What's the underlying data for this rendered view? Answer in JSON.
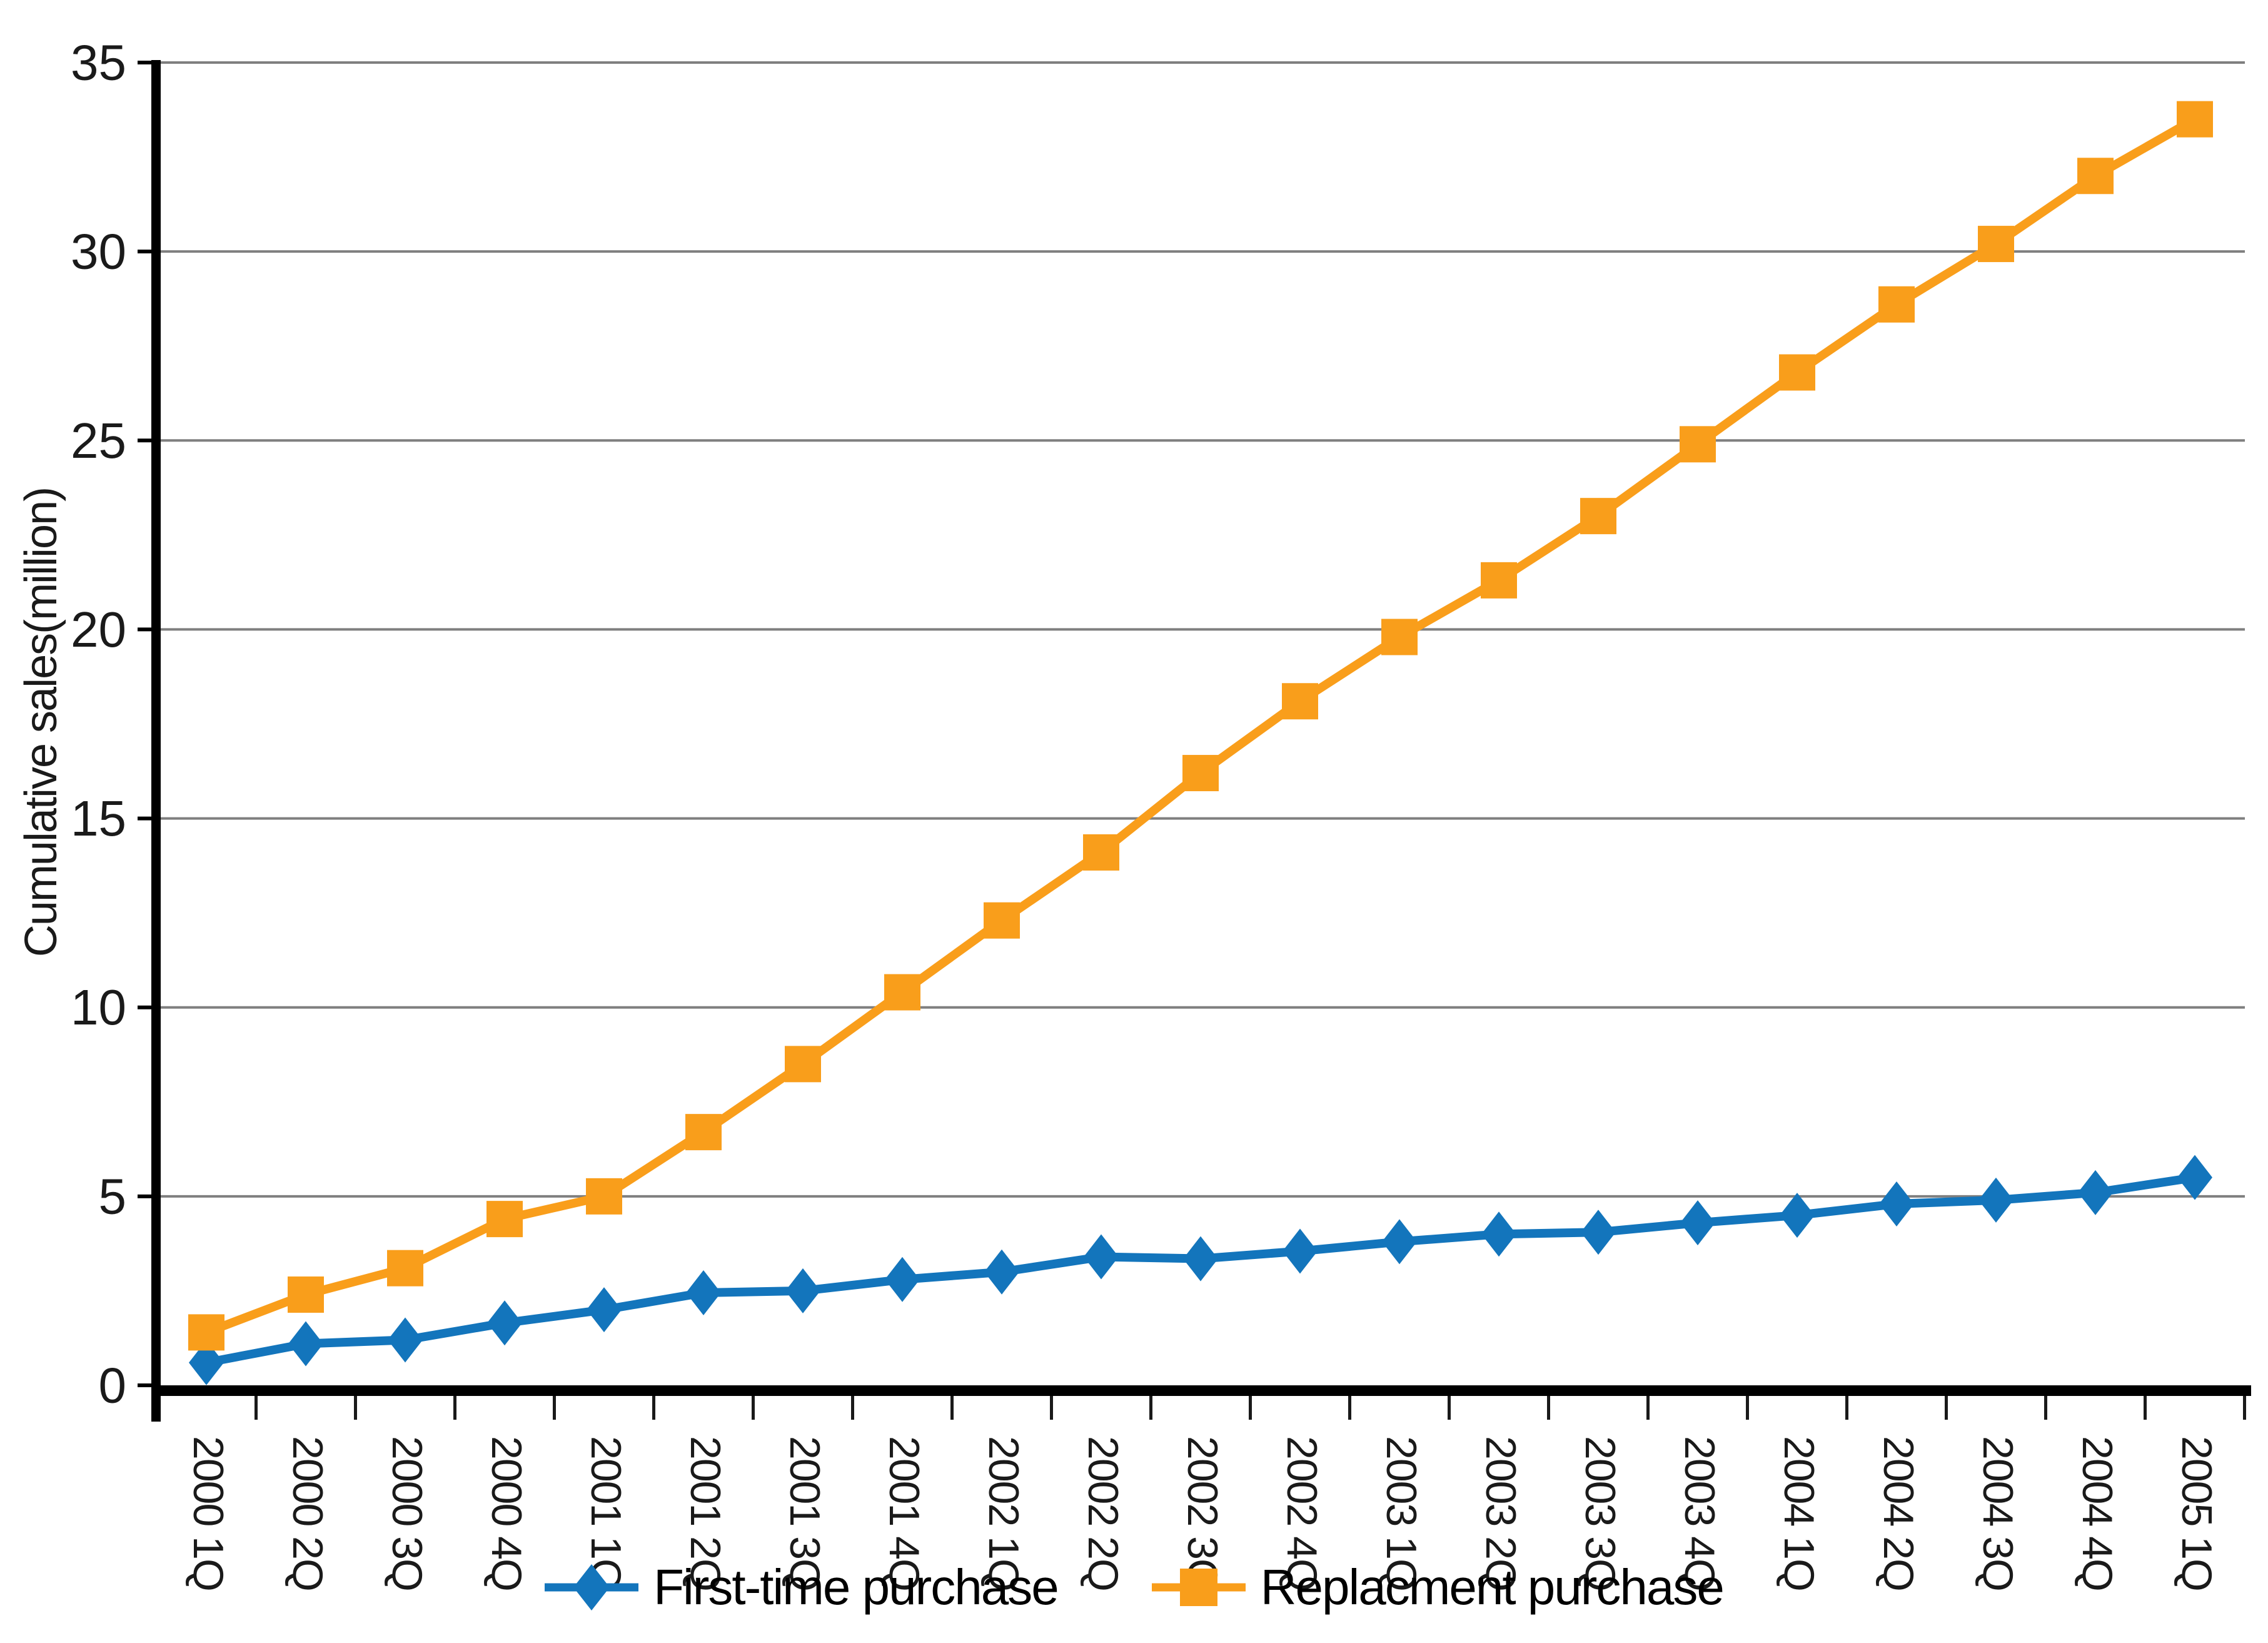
{
  "chart_data": {
    "type": "line",
    "title": "",
    "xlabel": "",
    "ylabel": "Cumulative sales(million)",
    "ylim": [
      0,
      35
    ],
    "yticks": [
      0,
      5,
      10,
      15,
      20,
      25,
      30,
      35
    ],
    "grid": true,
    "legend_position": "bottom",
    "categories": [
      "2000 1Q",
      "2000 2Q",
      "2000 3Q",
      "2000 4Q",
      "2001 1Q",
      "2001 2Q",
      "2001 3Q",
      "2001 4Q",
      "2002 1Q",
      "2002 2Q",
      "2002 3Q",
      "2002 4Q",
      "2003 1Q",
      "2003 2Q",
      "2003 3Q",
      "2003 4Q",
      "2004 1Q",
      "2004 2Q",
      "2004 3Q",
      "2004 4Q",
      "2005 1Q"
    ],
    "series": [
      {
        "name": "First-time purchase",
        "marker": "diamond",
        "color": "#1375BC",
        "values": [
          0.6,
          1.1,
          1.2,
          1.65,
          2.0,
          2.45,
          2.5,
          2.8,
          3.0,
          3.4,
          3.35,
          3.55,
          3.8,
          4.0,
          4.05,
          4.3,
          4.5,
          4.8,
          4.9,
          5.1,
          5.5
        ]
      },
      {
        "name": "Replacment purchase",
        "marker": "square",
        "color": "#F99E1B",
        "values": [
          1.4,
          2.4,
          3.1,
          4.4,
          5.0,
          6.7,
          8.5,
          10.4,
          12.3,
          14.1,
          16.2,
          18.1,
          19.8,
          21.3,
          23.0,
          24.9,
          26.8,
          28.6,
          30.2,
          32.0,
          33.5
        ]
      }
    ]
  },
  "colors": {
    "grid": "#7f7f7f",
    "axis": "#000000",
    "tick": "#1a1a1a",
    "text": "#1a1a1a"
  }
}
